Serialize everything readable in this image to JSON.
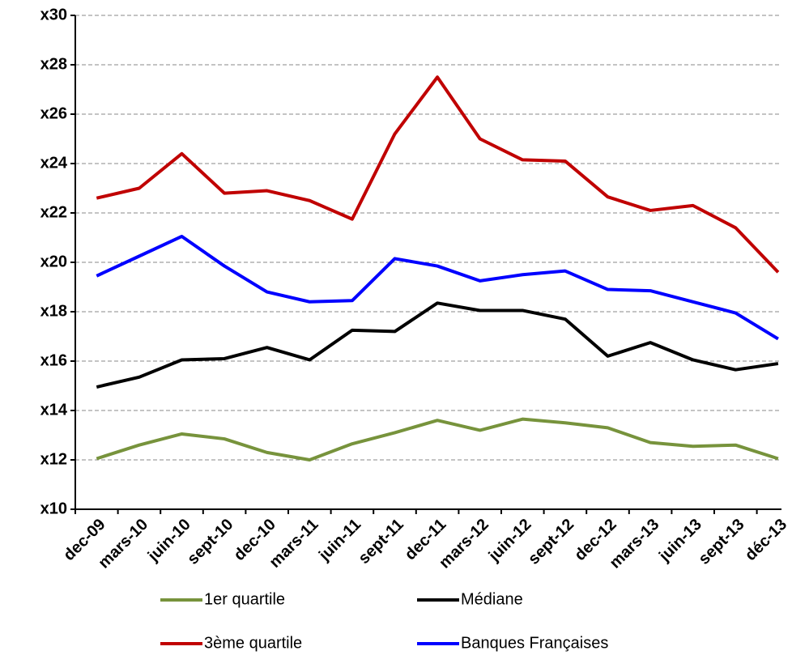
{
  "chart_data": {
    "type": "line",
    "categories": [
      "dec-09",
      "mars-10",
      "juin-10",
      "sept-10",
      "dec-10",
      "mars-11",
      "juin-11",
      "sept-11",
      "dec-11",
      "mars-12",
      "juin-12",
      "sept-12",
      "dec-12",
      "mars-13",
      "juin-13",
      "sept-13",
      "déc-13"
    ],
    "series": [
      {
        "name": "1er quartile",
        "color": "#77933c",
        "values": [
          12.05,
          12.6,
          13.05,
          12.85,
          12.3,
          12.0,
          12.65,
          13.1,
          13.6,
          13.2,
          13.65,
          13.5,
          13.3,
          12.7,
          12.55,
          12.6,
          12.05
        ]
      },
      {
        "name": "Médiane",
        "color": "#000000",
        "values": [
          14.95,
          15.35,
          16.05,
          16.1,
          16.55,
          16.05,
          17.25,
          17.2,
          18.35,
          18.05,
          18.05,
          17.7,
          16.2,
          16.75,
          16.05,
          15.65,
          15.9
        ]
      },
      {
        "name": "3ème quartile",
        "color": "#c00000",
        "values": [
          22.6,
          23.0,
          24.4,
          22.8,
          22.9,
          22.5,
          21.75,
          25.2,
          27.5,
          25.0,
          24.15,
          24.1,
          22.65,
          22.1,
          22.3,
          21.4,
          19.6
        ]
      },
      {
        "name": "Banques Françaises",
        "color": "#0000ff",
        "values": [
          19.45,
          20.25,
          21.05,
          19.85,
          18.8,
          18.4,
          18.45,
          20.15,
          19.85,
          19.25,
          19.5,
          19.65,
          18.9,
          18.85,
          18.4,
          17.95,
          16.9
        ]
      }
    ],
    "ylim": [
      10,
      30
    ],
    "yticks": [
      {
        "value": 10,
        "label": "x10"
      },
      {
        "value": 12,
        "label": "x12"
      },
      {
        "value": 14,
        "label": "x14"
      },
      {
        "value": 16,
        "label": "x16"
      },
      {
        "value": 18,
        "label": "x18"
      },
      {
        "value": 20,
        "label": "x20"
      },
      {
        "value": 22,
        "label": "x22"
      },
      {
        "value": 24,
        "label": "x24"
      },
      {
        "value": 26,
        "label": "x26"
      },
      {
        "value": 28,
        "label": "x28"
      },
      {
        "value": 30,
        "label": "x30"
      }
    ],
    "grid": true
  }
}
